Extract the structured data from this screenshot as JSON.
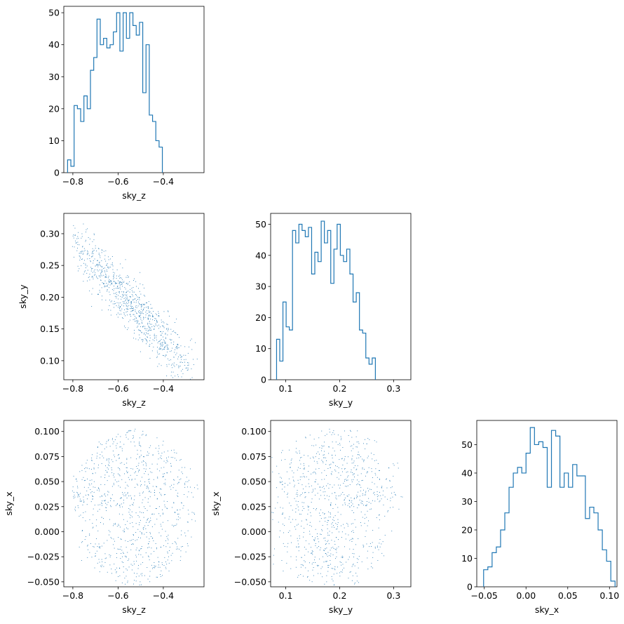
{
  "figure": {
    "accent_color": "#1f77b4",
    "panels": [
      {
        "id": "hist-sky_z",
        "type": "histogram",
        "xlabel": "sky_z",
        "ylabel": "",
        "xlim": [
          -0.84,
          -0.22
        ],
        "ylim": [
          0,
          52
        ],
        "xticks": [
          {
            "v": -0.8,
            "label": "−0.8"
          },
          {
            "v": -0.6,
            "label": "−0.6"
          },
          {
            "v": -0.4,
            "label": "−0.4"
          }
        ],
        "yticks": [
          {
            "v": 0,
            "label": "0"
          },
          {
            "v": 10,
            "label": "10"
          },
          {
            "v": 20,
            "label": "20"
          },
          {
            "v": 30,
            "label": "30"
          },
          {
            "v": 40,
            "label": "40"
          },
          {
            "v": 50,
            "label": "50"
          }
        ]
      },
      {
        "id": "scatter-sky_z-sky_y",
        "type": "scatter",
        "xlabel": "sky_z",
        "ylabel": "sky_y",
        "xlim": [
          -0.84,
          -0.22
        ],
        "ylim": [
          0.07,
          0.332
        ],
        "xticks": [
          {
            "v": -0.8,
            "label": "−0.8"
          },
          {
            "v": -0.6,
            "label": "−0.6"
          },
          {
            "v": -0.4,
            "label": "−0.4"
          }
        ],
        "yticks": [
          {
            "v": 0.1,
            "label": "0.10"
          },
          {
            "v": 0.15,
            "label": "0.15"
          },
          {
            "v": 0.2,
            "label": "0.20"
          },
          {
            "v": 0.25,
            "label": "0.25"
          },
          {
            "v": 0.3,
            "label": "0.30"
          }
        ]
      },
      {
        "id": "hist-sky_y",
        "type": "histogram",
        "xlabel": "sky_y",
        "ylabel": "",
        "xlim": [
          0.072,
          0.332
        ],
        "ylim": [
          0,
          53.5
        ],
        "xticks": [
          {
            "v": 0.1,
            "label": "0.1"
          },
          {
            "v": 0.2,
            "label": "0.2"
          },
          {
            "v": 0.3,
            "label": "0.3"
          }
        ],
        "yticks": [
          {
            "v": 0,
            "label": "0"
          },
          {
            "v": 10,
            "label": "10"
          },
          {
            "v": 20,
            "label": "20"
          },
          {
            "v": 30,
            "label": "30"
          },
          {
            "v": 40,
            "label": "40"
          },
          {
            "v": 50,
            "label": "50"
          }
        ]
      },
      {
        "id": "scatter-sky_z-sky_x",
        "type": "scatter",
        "xlabel": "sky_z",
        "ylabel": "sky_x",
        "xlim": [
          -0.84,
          -0.22
        ],
        "ylim": [
          -0.055,
          0.111
        ],
        "xticks": [
          {
            "v": -0.8,
            "label": "−0.8"
          },
          {
            "v": -0.6,
            "label": "−0.6"
          },
          {
            "v": -0.4,
            "label": "−0.4"
          }
        ],
        "yticks": [
          {
            "v": -0.05,
            "label": "−0.050"
          },
          {
            "v": -0.025,
            "label": "−0.025"
          },
          {
            "v": 0,
            "label": "0.000"
          },
          {
            "v": 0.025,
            "label": "0.025"
          },
          {
            "v": 0.05,
            "label": "0.050"
          },
          {
            "v": 0.075,
            "label": "0.075"
          },
          {
            "v": 0.1,
            "label": "0.100"
          }
        ]
      },
      {
        "id": "scatter-sky_y-sky_x",
        "type": "scatter",
        "xlabel": "sky_y",
        "ylabel": "sky_x",
        "xlim": [
          0.072,
          0.332
        ],
        "ylim": [
          -0.055,
          0.111
        ],
        "xticks": [
          {
            "v": 0.1,
            "label": "0.1"
          },
          {
            "v": 0.2,
            "label": "0.2"
          },
          {
            "v": 0.3,
            "label": "0.3"
          }
        ],
        "yticks": [
          {
            "v": -0.05,
            "label": "−0.050"
          },
          {
            "v": -0.025,
            "label": "−0.025"
          },
          {
            "v": 0,
            "label": "0.000"
          },
          {
            "v": 0.025,
            "label": "0.025"
          },
          {
            "v": 0.05,
            "label": "0.050"
          },
          {
            "v": 0.075,
            "label": "0.075"
          },
          {
            "v": 0.1,
            "label": "0.100"
          }
        ]
      },
      {
        "id": "hist-sky_x",
        "type": "histogram",
        "xlabel": "sky_x",
        "ylabel": "",
        "xlim": [
          -0.059,
          0.109
        ],
        "ylim": [
          0,
          58.5
        ],
        "xticks": [
          {
            "v": -0.05,
            "label": "−0.05"
          },
          {
            "v": 0,
            "label": "0.00"
          },
          {
            "v": 0.05,
            "label": "0.05"
          },
          {
            "v": 0.1,
            "label": "0.10"
          }
        ],
        "yticks": [
          {
            "v": 0,
            "label": "0"
          },
          {
            "v": 10,
            "label": "10"
          },
          {
            "v": 20,
            "label": "20"
          },
          {
            "v": 30,
            "label": "30"
          },
          {
            "v": 40,
            "label": "40"
          },
          {
            "v": 50,
            "label": "50"
          }
        ]
      }
    ]
  },
  "chart_data": [
    {
      "type": "bar",
      "subtype": "step-histogram",
      "panel": "hist-sky_z",
      "xlabel": "sky_z",
      "bin_start": -0.8233,
      "bin_width": 0.01445,
      "counts": [
        4,
        2,
        21,
        20,
        16,
        24,
        20,
        32,
        36,
        48,
        40,
        42,
        39,
        40,
        44,
        50,
        38,
        50,
        42,
        50,
        46,
        43,
        47,
        25,
        40,
        18,
        16,
        10,
        8
      ],
      "ylim": [
        0,
        52
      ],
      "color": "#1f77b4"
    },
    {
      "type": "bar",
      "subtype": "step-histogram",
      "panel": "hist-sky_y",
      "xlabel": "sky_y",
      "bin_start": 0.083,
      "bin_width": 0.00591,
      "counts": [
        13,
        6,
        25,
        17,
        16,
        48,
        44,
        50,
        48,
        46,
        49,
        34,
        41,
        38,
        51,
        44,
        48,
        31,
        42,
        50,
        40,
        38,
        42,
        34,
        25,
        28,
        16,
        15,
        7,
        5,
        7
      ],
      "ylim": [
        0,
        53.5
      ],
      "color": "#1f77b4"
    },
    {
      "type": "bar",
      "subtype": "step-histogram",
      "panel": "hist-sky_x",
      "xlabel": "sky_x",
      "bin_start": -0.0508,
      "bin_width": 0.00508,
      "counts": [
        6,
        7,
        12,
        14,
        20,
        26,
        35,
        40,
        42,
        40,
        47,
        56,
        50,
        51,
        49,
        35,
        55,
        53,
        35,
        40,
        35,
        43,
        39,
        39,
        24,
        28,
        26,
        20,
        13,
        9,
        2
      ],
      "ylim": [
        0,
        58.5
      ],
      "color": "#1f77b4"
    },
    {
      "type": "scatter",
      "panel": "scatter-sky_z-sky_y",
      "x_var": "sky_z",
      "y_var": "sky_y",
      "n_points": 900,
      "xlim": [
        -0.84,
        -0.22
      ],
      "ylim": [
        0.07,
        0.332
      ],
      "trend": {
        "slope": -0.39,
        "intercept": -0.0235
      },
      "color": "#1f77b4"
    },
    {
      "type": "scatter",
      "panel": "scatter-sky_z-sky_x",
      "x_var": "sky_z",
      "y_var": "sky_x",
      "n_points": 900,
      "xlim": [
        -0.84,
        -0.22
      ],
      "ylim": [
        -0.055,
        0.111
      ],
      "color": "#1f77b4"
    },
    {
      "type": "scatter",
      "panel": "scatter-sky_y-sky_x",
      "x_var": "sky_y",
      "y_var": "sky_x",
      "n_points": 900,
      "xlim": [
        0.072,
        0.332
      ],
      "ylim": [
        -0.055,
        0.111
      ],
      "color": "#1f77b4"
    }
  ]
}
